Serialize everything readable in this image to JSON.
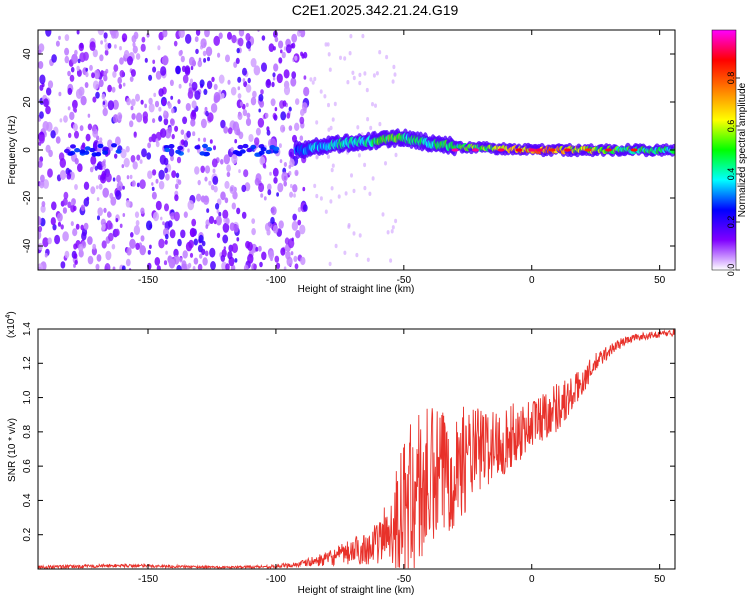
{
  "title": "C2E1.2025.342.21.24.G19",
  "chart_data": [
    {
      "type": "heatmap",
      "xlabel": "Height of straight line (km)",
      "ylabel": "Frequency (Hz)",
      "xlim": [
        -193,
        56
      ],
      "ylim": [
        -50,
        50
      ],
      "xticks": [
        -150,
        -100,
        -50,
        0,
        50
      ],
      "yticks": [
        -40,
        -20,
        0,
        20,
        40
      ],
      "colorbar": {
        "label": "Normalized spectral amplitude",
        "range": [
          0,
          1
        ],
        "ticks": [
          "0.0",
          "0.2",
          "0.4",
          "0.6",
          "0.8"
        ],
        "colors": [
          "#ffffff",
          "#8000ff",
          "#0000ff",
          "#00ffff",
          "#00ff00",
          "#ffff00",
          "#ff8000",
          "#ff0000",
          "#ff00ff"
        ]
      },
      "ridge": {
        "description": "frequency centre of the signal band versus height",
        "x": [
          -90,
          -80,
          -70,
          -60,
          -55,
          -50,
          -45,
          -40,
          -30,
          -20,
          -10,
          0,
          10,
          20,
          30,
          40,
          56
        ],
        "y": [
          0,
          2,
          3,
          4,
          5,
          5,
          4,
          3,
          1.5,
          1,
          0.5,
          0,
          0,
          0,
          0,
          0,
          0
        ],
        "amplitude": [
          0.35,
          0.45,
          0.5,
          0.55,
          0.6,
          0.55,
          0.5,
          0.5,
          0.55,
          0.6,
          0.7,
          0.85,
          0.8,
          0.7,
          0.6,
          0.55,
          0.5
        ]
      }
    },
    {
      "type": "line",
      "xlabel": "Height of straight line (km)",
      "ylabel": "SNR (10 * v/v)",
      "y_multiplier": "(x10^4)",
      "xlim": [
        -193,
        56
      ],
      "ylim": [
        0,
        1.4
      ],
      "xticks": [
        -150,
        -100,
        -50,
        0,
        50
      ],
      "yticks": [
        0.2,
        0.4,
        0.6,
        0.8,
        1.0,
        1.2,
        1.4
      ],
      "color": "#e8312a",
      "series": [
        {
          "x": [
            -193,
            -160,
            -120,
            -100,
            -90,
            -80,
            -70,
            -60,
            -55,
            -50,
            -45,
            -40,
            -35,
            -30,
            -25,
            -20,
            -15,
            -10,
            -5,
            0,
            5,
            10,
            15,
            20,
            25,
            30,
            35,
            40,
            45,
            50,
            56
          ],
          "y": [
            0.01,
            0.02,
            0.01,
            0.015,
            0.03,
            0.06,
            0.1,
            0.15,
            0.25,
            0.35,
            0.45,
            0.5,
            0.55,
            0.6,
            0.65,
            0.7,
            0.72,
            0.75,
            0.8,
            0.85,
            0.9,
            0.95,
            1.0,
            1.1,
            1.2,
            1.27,
            1.32,
            1.35,
            1.36,
            1.37,
            1.38
          ],
          "noise_envelope": [
            0.01,
            0.01,
            0.005,
            0.01,
            0.02,
            0.04,
            0.08,
            0.12,
            0.25,
            0.4,
            0.5,
            0.45,
            0.4,
            0.35,
            0.3,
            0.25,
            0.22,
            0.2,
            0.18,
            0.15,
            0.15,
            0.15,
            0.12,
            0.08,
            0.06,
            0.04,
            0.03,
            0.02,
            0.02,
            0.02,
            0.02
          ]
        }
      ]
    }
  ]
}
